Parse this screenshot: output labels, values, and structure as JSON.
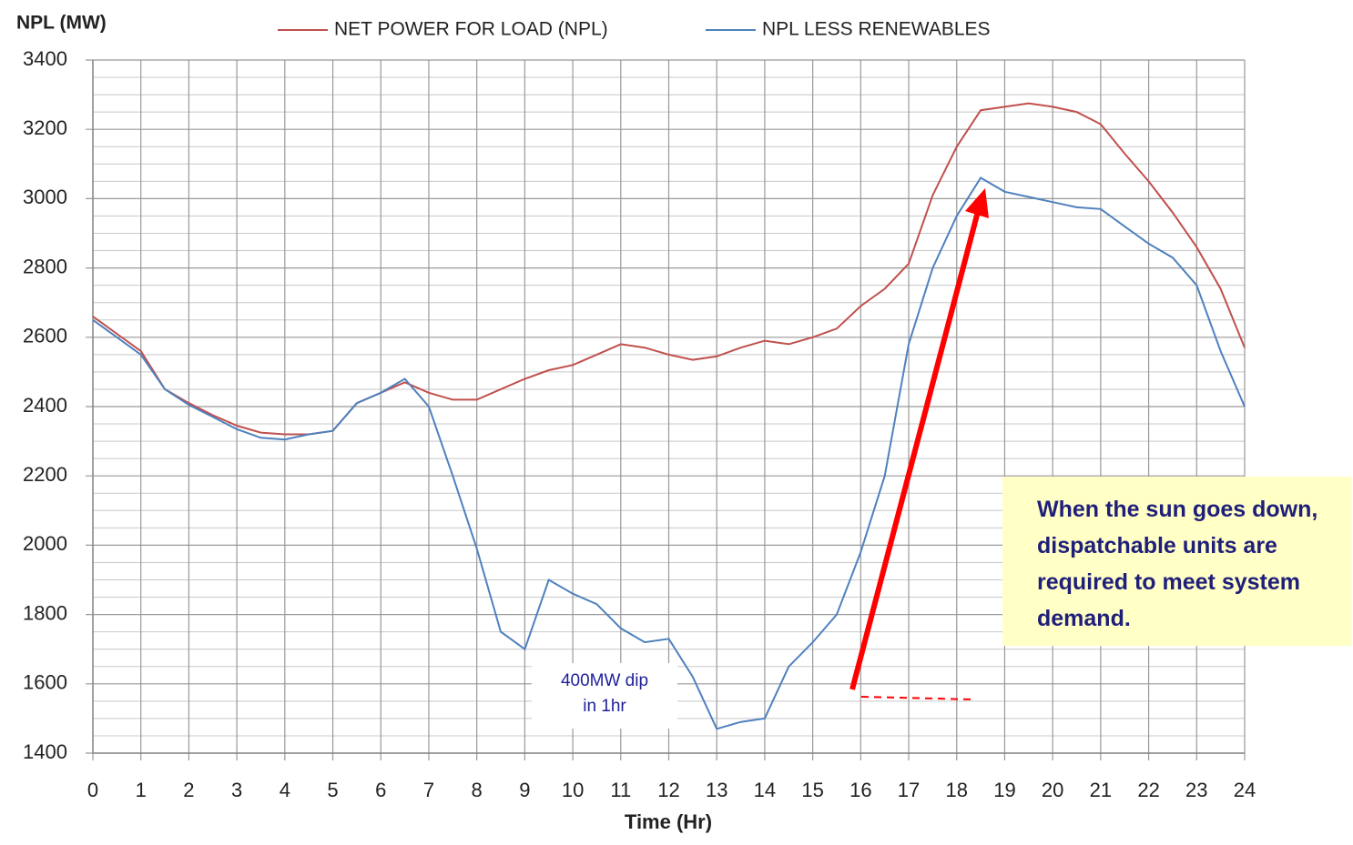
{
  "chart_data": {
    "type": "line",
    "y_axis_label": "NPL (MW)",
    "x_axis_label": "Time (Hr)",
    "x": [
      0,
      0.5,
      1,
      1.5,
      2,
      2.5,
      3,
      3.5,
      4,
      4.5,
      5,
      5.5,
      6,
      6.5,
      7,
      7.5,
      8,
      8.5,
      9,
      9.5,
      10,
      10.5,
      11,
      11.5,
      12,
      12.5,
      13,
      13.5,
      14,
      14.5,
      15,
      15.5,
      16,
      16.5,
      17,
      17.5,
      18,
      18.5,
      19,
      19.5,
      20,
      20.5,
      21,
      21.5,
      22,
      22.5,
      23,
      23.5,
      24
    ],
    "series": [
      {
        "name": "NET POWER FOR LOAD (NPL)",
        "color": "#c0504d",
        "values": [
          2660,
          2610,
          2560,
          2450,
          2410,
          2375,
          2345,
          2325,
          2320,
          2320,
          2330,
          2410,
          2440,
          2470,
          2440,
          2420,
          2420,
          2450,
          2480,
          2505,
          2520,
          2550,
          2580,
          2570,
          2550,
          2535,
          2545,
          2570,
          2590,
          2580,
          2600,
          2625,
          2690,
          2740,
          2812,
          3010,
          3150,
          3255,
          3265,
          3275,
          3265,
          3250,
          3215,
          3130,
          3050,
          2960,
          2860,
          2740,
          2570
        ]
      },
      {
        "name": "NPL LESS RENEWABLES",
        "color": "#4f81bd",
        "values": [
          2650,
          2600,
          2550,
          2450,
          2405,
          2370,
          2335,
          2310,
          2305,
          2320,
          2330,
          2410,
          2440,
          2480,
          2400,
          2200,
          1990,
          1750,
          1700,
          1900,
          1860,
          1830,
          1760,
          1720,
          1730,
          1620,
          1470,
          1490,
          1500,
          1650,
          1720,
          1800,
          1980,
          2200,
          2580,
          2800,
          2950,
          3060,
          3020,
          3005,
          2990,
          2975,
          2970,
          2920,
          2870,
          2830,
          2750,
          2560,
          2400
        ]
      }
    ],
    "xlim": [
      0,
      24
    ],
    "xticks": [
      0,
      1,
      2,
      3,
      4,
      5,
      6,
      7,
      8,
      9,
      10,
      11,
      12,
      13,
      14,
      15,
      16,
      17,
      18,
      19,
      20,
      21,
      22,
      23,
      24
    ],
    "ylim": [
      1400,
      3400
    ],
    "yticks": [
      1400,
      1600,
      1800,
      2000,
      2200,
      2400,
      2600,
      2800,
      3000,
      3200,
      3400
    ],
    "yminorticks": [
      1450,
      1500,
      1550,
      1650,
      1700,
      1750,
      1850,
      1900,
      1950,
      2050,
      2100,
      2150,
      2250,
      2300,
      2350,
      2450,
      2500,
      2550,
      2650,
      2700,
      2750,
      2850,
      2900,
      2950,
      3050,
      3100,
      3150,
      3250,
      3300,
      3350
    ],
    "grid": true,
    "legend": "top",
    "annotations": [
      {
        "text": "When the sun goes down, dispatchable units are required to meet system demand."
      },
      {
        "text": "400MW dip in 1hr"
      }
    ]
  }
}
